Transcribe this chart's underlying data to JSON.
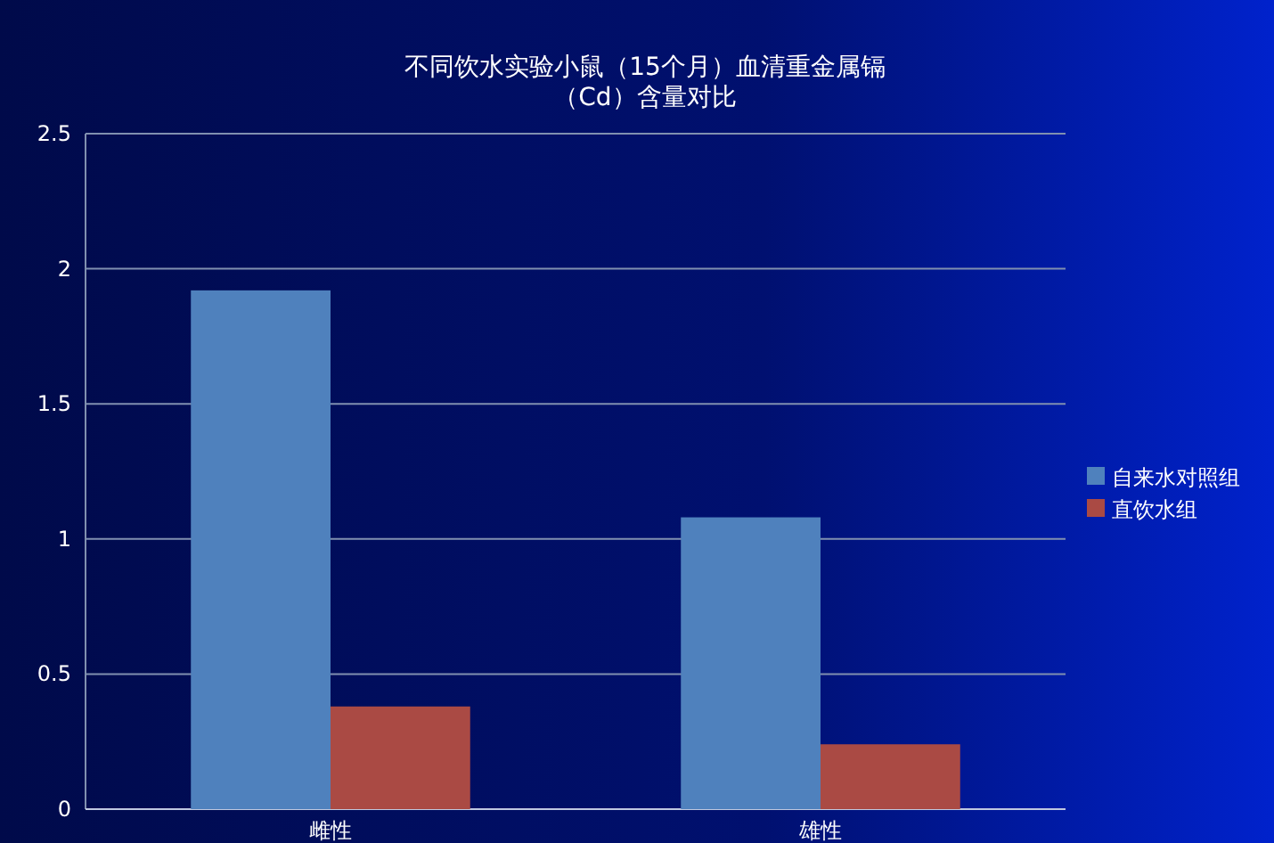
{
  "chart_data": {
    "type": "bar",
    "title": "不同饮水实验小鼠（15个月）血清重金属镉（Cd）含量对比",
    "categories": [
      "雌性",
      "雄性"
    ],
    "series": [
      {
        "name": "自来水对照组",
        "color": "#4f81bd",
        "values": [
          1.92,
          1.08
        ]
      },
      {
        "name": "直饮水组",
        "color": "#aa4a44",
        "values": [
          0.38,
          0.24
        ]
      }
    ],
    "ylim": [
      0,
      2.5
    ],
    "yticks": [
      0,
      0.5,
      1,
      1.5,
      2,
      2.5
    ],
    "grid": "y",
    "legend": "right"
  }
}
